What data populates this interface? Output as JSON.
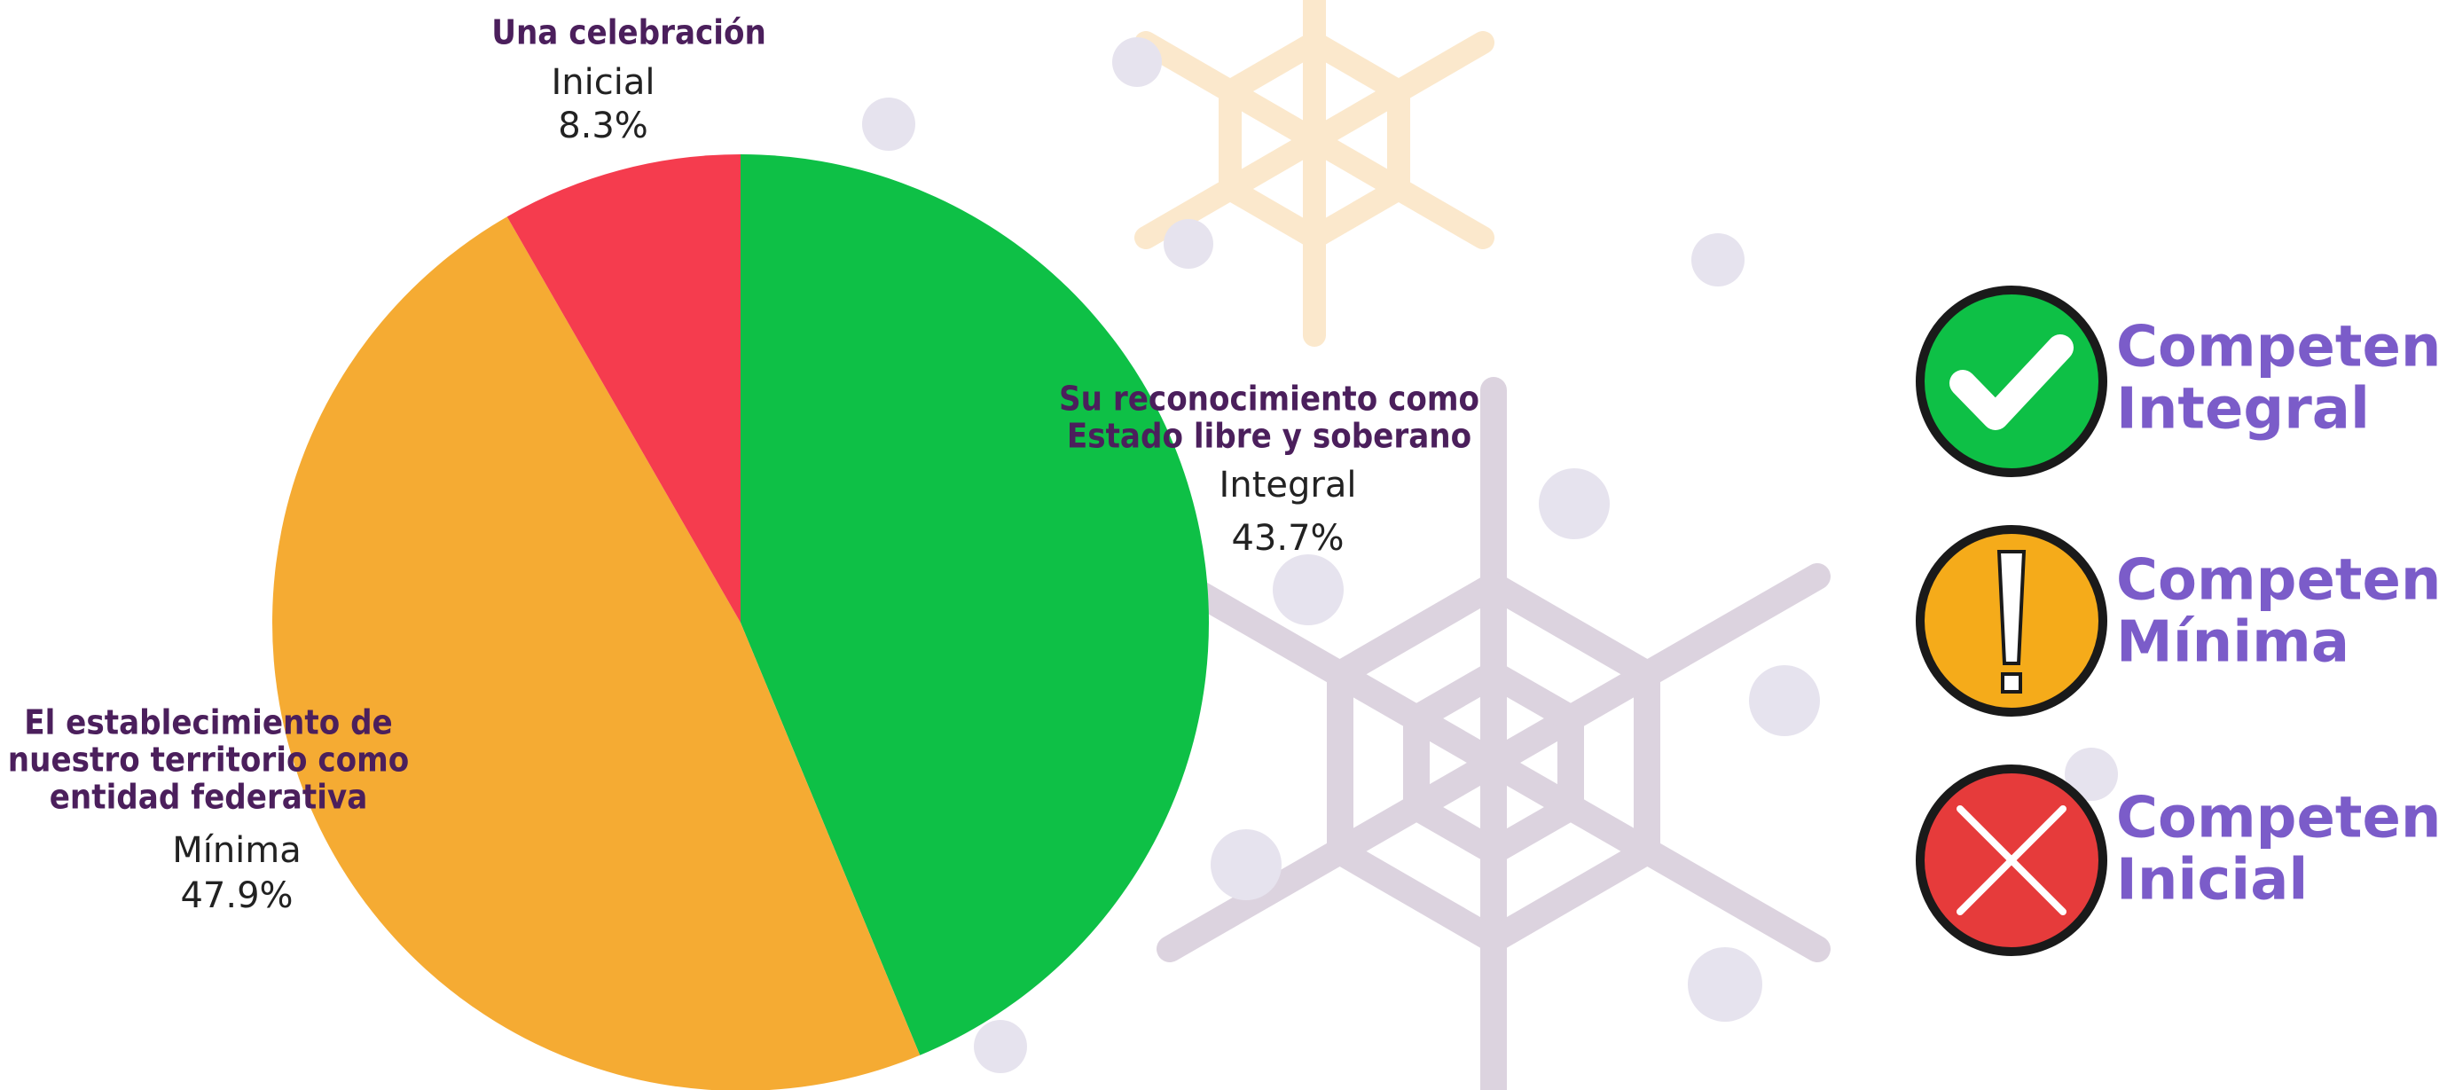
{
  "chart_data": {
    "type": "pie",
    "categories": [
      [
        "Su reconocimiento como",
        "Estado libre y soberano"
      ],
      [
        "El establecimiento de",
        "nuestro territorio como",
        "entidad federativa"
      ],
      [
        "Una celebración"
      ]
    ],
    "levels": [
      "Integral",
      "Mínima",
      "Inicial"
    ],
    "values": [
      43.7,
      47.9,
      8.3
    ],
    "value_labels": [
      "43.7%",
      "47.9%",
      "8.3%"
    ],
    "colors": [
      "#0ec046",
      "#f5ab33",
      "#f53c4e"
    ],
    "legend": [
      [
        "Competencia",
        "Integral"
      ],
      [
        "Competencia",
        "Mínima"
      ],
      [
        "Competencia",
        "Inicial"
      ]
    ]
  }
}
